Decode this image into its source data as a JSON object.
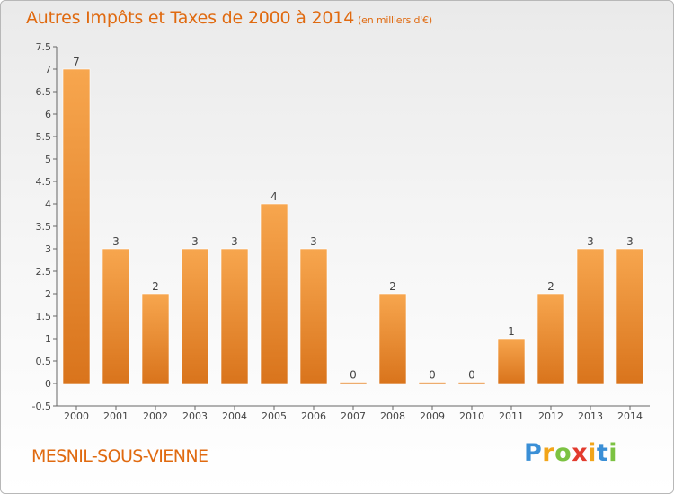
{
  "chart_data": {
    "type": "bar",
    "title": "Autres Impôts et Taxes de 2000 à 2014",
    "subtitle": "(en milliers d'€)",
    "categories": [
      "2000",
      "2001",
      "2002",
      "2003",
      "2004",
      "2005",
      "2006",
      "2007",
      "2008",
      "2009",
      "2010",
      "2011",
      "2012",
      "2013",
      "2014"
    ],
    "values": [
      7,
      3,
      2,
      3,
      3,
      4,
      3,
      0,
      2,
      0,
      0,
      1,
      2,
      3,
      3
    ],
    "data_labels": [
      "7",
      "3",
      "2",
      "3",
      "3",
      "4",
      "3",
      "0",
      "2",
      "0",
      "0",
      "1",
      "2",
      "3",
      "3"
    ],
    "ylim": [
      -0.5,
      7.5
    ],
    "yticks": [
      -0.5,
      0,
      0.5,
      1,
      1.5,
      2,
      2.5,
      3,
      3.5,
      4,
      4.5,
      5,
      5.5,
      6,
      6.5,
      7,
      7.5
    ],
    "ytick_labels": [
      "-0.5",
      "0",
      "0.5",
      "1",
      "1.5",
      "2",
      "2.5",
      "3",
      "3.5",
      "4",
      "4.5",
      "5",
      "5.5",
      "6",
      "6.5",
      "7",
      "7.5"
    ],
    "xlabel": "",
    "ylabel": "",
    "grid": false,
    "colors": {
      "bar_top": "#f7a64e",
      "bar_bottom": "#d9741c",
      "title": "#e06a10"
    }
  },
  "place_name": "MESNIL-SOUS-VIENNE",
  "logo": {
    "letters": [
      "P",
      "r",
      "o",
      "x",
      "i",
      "t",
      "i"
    ],
    "colors": [
      "#3a8fd6",
      "#f2a51a",
      "#7cc242",
      "#e23b2e",
      "#f2a51a",
      "#3a8fd6",
      "#7cc242"
    ]
  }
}
